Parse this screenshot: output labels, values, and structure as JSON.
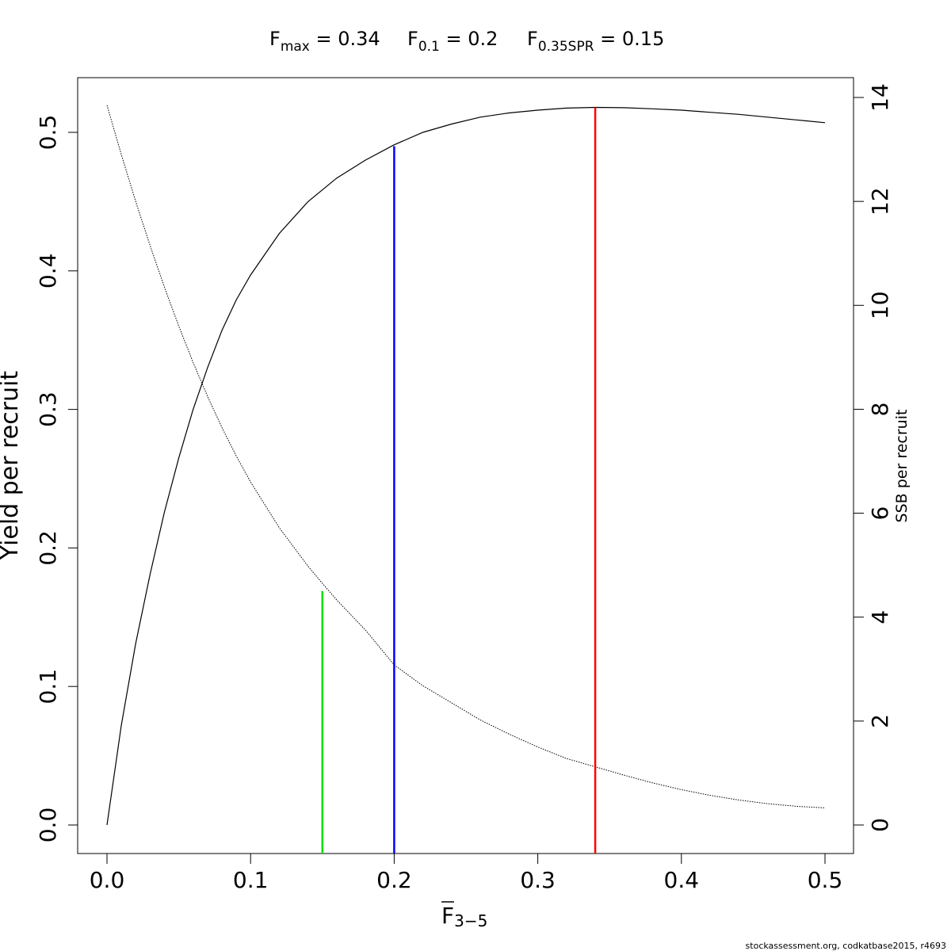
{
  "header": {
    "fmax_label": "F",
    "fmax_sub": "max",
    "fmax_value": " = 0.34",
    "f01_label": "F",
    "f01_sub": "0.1",
    "f01_value": " = 0.2",
    "fspr_label": "F",
    "fspr_sub": "0.35SPR",
    "fspr_value": " = 0.15"
  },
  "footer": {
    "credit": "stockassessment.org, codkatbase2015, r4693"
  },
  "chart_data": {
    "type": "line",
    "xlabel_main": "F",
    "xlabel_sub": "3−5",
    "ylabel_left": "Yield per recruit",
    "ylabel_right": "SSB per recruit",
    "xlim": [
      0.0,
      0.5
    ],
    "ylim_left": [
      0.0,
      0.52
    ],
    "ylim_right": [
      0,
      14
    ],
    "x_ticks": [
      0.0,
      0.1,
      0.2,
      0.3,
      0.4,
      0.5
    ],
    "x_tick_labels": [
      "0.0",
      "0.1",
      "0.2",
      "0.3",
      "0.4",
      "0.5"
    ],
    "y_left_ticks": [
      0.0,
      0.1,
      0.2,
      0.3,
      0.4,
      0.5
    ],
    "y_left_tick_labels": [
      "0.0",
      "0.1",
      "0.2",
      "0.3",
      "0.4",
      "0.5"
    ],
    "y_right_ticks": [
      0,
      2,
      4,
      6,
      8,
      10,
      12,
      14
    ],
    "y_right_tick_labels": [
      "0",
      "2",
      "4",
      "6",
      "8",
      "10",
      "12",
      "14"
    ],
    "grid": false,
    "series": [
      {
        "axis": "left",
        "style": "solid",
        "color": "#000000",
        "x": [
          0.0,
          0.01,
          0.02,
          0.03,
          0.04,
          0.05,
          0.06,
          0.07,
          0.08,
          0.09,
          0.1,
          0.12,
          0.14,
          0.16,
          0.18,
          0.2,
          0.22,
          0.24,
          0.26,
          0.28,
          0.3,
          0.32,
          0.34,
          0.36,
          0.38,
          0.4,
          0.42,
          0.44,
          0.46,
          0.48,
          0.5
        ],
        "y": [
          0.0,
          0.072,
          0.131,
          0.181,
          0.226,
          0.265,
          0.3,
          0.33,
          0.357,
          0.379,
          0.397,
          0.427,
          0.45,
          0.467,
          0.48,
          0.491,
          0.5,
          0.506,
          0.511,
          0.514,
          0.516,
          0.5175,
          0.518,
          0.5178,
          0.517,
          0.516,
          0.5145,
          0.513,
          0.511,
          0.509,
          0.507
        ]
      },
      {
        "axis": "right",
        "style": "dotted",
        "color": "#000000",
        "x": [
          0.0,
          0.01,
          0.02,
          0.03,
          0.04,
          0.05,
          0.06,
          0.07,
          0.08,
          0.09,
          0.1,
          0.12,
          0.14,
          0.15,
          0.16,
          0.18,
          0.2,
          0.22,
          0.24,
          0.26,
          0.28,
          0.3,
          0.32,
          0.34,
          0.36,
          0.38,
          0.4,
          0.42,
          0.44,
          0.46,
          0.48,
          0.5
        ],
        "y": [
          13.85,
          12.9,
          12.0,
          11.15,
          10.35,
          9.6,
          8.9,
          8.25,
          7.65,
          7.1,
          6.6,
          5.72,
          4.98,
          4.65,
          4.33,
          3.75,
          3.08,
          2.68,
          2.35,
          2.02,
          1.75,
          1.5,
          1.28,
          1.12,
          0.96,
          0.81,
          0.68,
          0.57,
          0.48,
          0.41,
          0.36,
          0.33
        ]
      }
    ],
    "reference_lines": [
      {
        "name": "F0.35SPR",
        "x": 0.15,
        "axis": "right",
        "y_top": 4.5,
        "color": "#00e000"
      },
      {
        "name": "F0.1",
        "x": 0.2,
        "axis": "left",
        "y_top": 0.49,
        "color": "#0000ff"
      },
      {
        "name": "Fmax",
        "x": 0.34,
        "axis": "left",
        "y_top": 0.518,
        "color": "#ff0000"
      }
    ]
  }
}
